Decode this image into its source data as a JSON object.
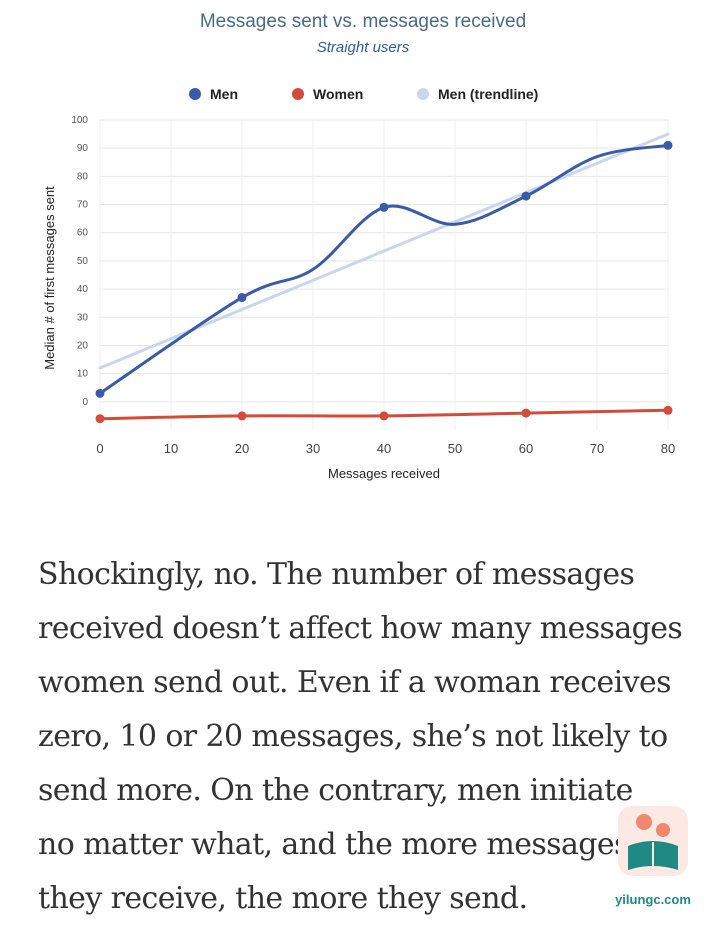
{
  "chart_data": {
    "type": "line",
    "title": "Messages sent vs. messages received",
    "subtitle": "Straight users",
    "xlabel": "Messages received",
    "ylabel": "Median # of first messages sent",
    "xlim": [
      0,
      80
    ],
    "ylim": [
      -10,
      100
    ],
    "x_ticks": [
      0,
      10,
      20,
      30,
      40,
      50,
      60,
      70,
      80
    ],
    "y_ticks": [
      0,
      10,
      20,
      30,
      40,
      50,
      60,
      70,
      80,
      90,
      100
    ],
    "grid": true,
    "legend_position": "top",
    "series": [
      {
        "name": "Men",
        "color": "#3a5ba9",
        "style": "smooth",
        "x": [
          0,
          20,
          30,
          40,
          50,
          60,
          70,
          80
        ],
        "y": [
          3,
          37,
          47,
          69,
          63,
          73,
          87,
          91
        ],
        "markers_at": [
          0,
          20,
          40,
          60,
          80
        ]
      },
      {
        "name": "Women",
        "color": "#d44b3a",
        "style": "smooth",
        "x": [
          0,
          20,
          40,
          60,
          80
        ],
        "y": [
          -6,
          -5,
          -5,
          -4,
          -3
        ],
        "markers_at": [
          0,
          20,
          40,
          60,
          80
        ]
      },
      {
        "name": "Men (trendline)",
        "color": "#c9d6ee",
        "style": "linear",
        "x": [
          0,
          80
        ],
        "y": [
          12,
          95
        ],
        "markers_at": []
      }
    ]
  },
  "article": {
    "lines": [
      "Shockingly, no. The number of messages",
      "received doesn’t affect how many messages",
      "women send out. Even if a woman receives",
      "zero, 10 or 20 messages, she’s not likely to",
      "send more. On the contrary, men initiate",
      "no matter what, and the more messages",
      "they receive, the more they send."
    ]
  },
  "watermark": {
    "text": "yilungc.com",
    "tile_color": "#fde9e4",
    "accent_color": "#1f8a84",
    "figure_color": "#f0876e"
  }
}
